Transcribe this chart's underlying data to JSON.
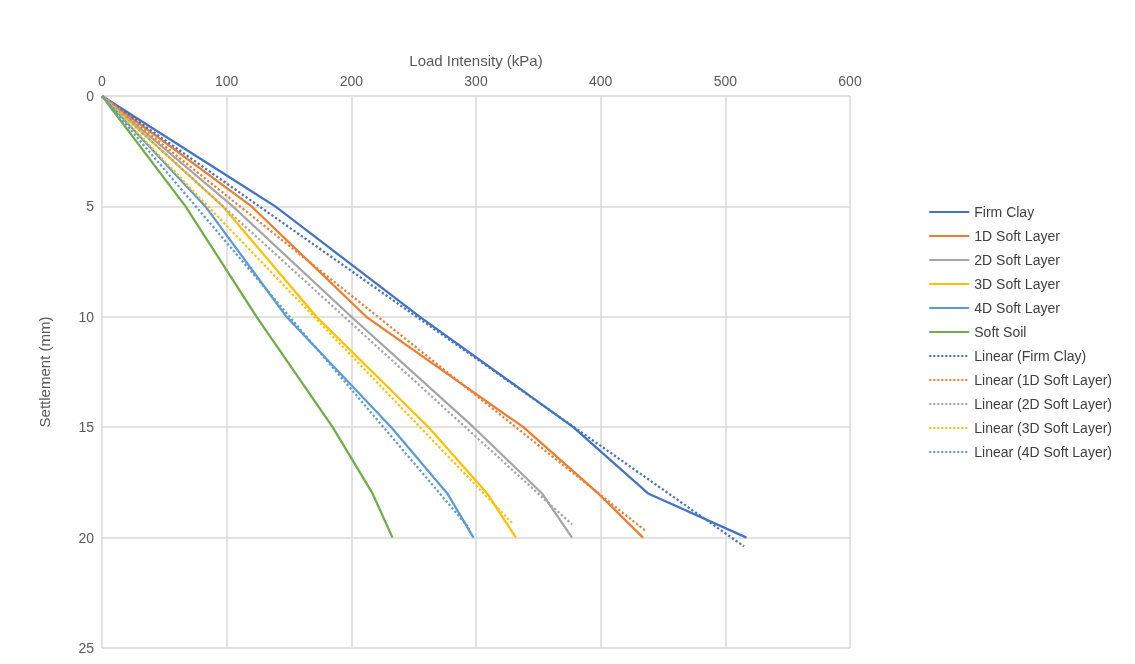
{
  "chart_data": {
    "type": "line",
    "xlabel": "Load Intensity (kPa)",
    "ylabel": "Settlement (mm)",
    "xlim": [
      0,
      600
    ],
    "xticks": [
      0,
      100,
      200,
      300,
      400,
      500,
      600
    ],
    "ylim": [
      25,
      0
    ],
    "yticks": [
      0,
      5,
      10,
      15,
      20,
      25
    ],
    "grid": true,
    "legend": "right",
    "marker": "none",
    "series": [
      {
        "name": "Firm Clay",
        "color": "#4472c4",
        "x": [
          0,
          139,
          255,
          378,
          438,
          517
        ],
        "values": [
          0,
          5,
          10,
          15,
          18,
          20
        ]
      },
      {
        "name": "1D Soft Layer",
        "color": "#ed7d31",
        "x": [
          0,
          120,
          212,
          338,
          398,
          434
        ],
        "values": [
          0,
          5,
          10,
          15,
          18,
          20
        ]
      },
      {
        "name": "2D Soft Layer",
        "color": "#a5a5a5",
        "x": [
          0,
          105,
          200,
          298,
          353,
          377
        ],
        "values": [
          0,
          5,
          10,
          15,
          18,
          20
        ]
      },
      {
        "name": "3D Soft Layer",
        "color": "#ffc000",
        "x": [
          0,
          97,
          172,
          262,
          309,
          332
        ],
        "values": [
          0,
          5,
          10,
          15,
          18,
          20
        ]
      },
      {
        "name": "4D Soft Layer",
        "color": "#5b9bd5",
        "x": [
          0,
          83,
          148,
          232,
          277,
          298
        ],
        "values": [
          0,
          5,
          10,
          15,
          18,
          20
        ]
      },
      {
        "name": "Soft Soil",
        "color": "#70ad47",
        "x": [
          0,
          67,
          124,
          185,
          217,
          233
        ],
        "values": [
          0,
          5,
          10,
          15,
          18,
          20
        ]
      },
      {
        "name": "Linear (Firm Clay)",
        "color": "#4472c4",
        "line_style": "dotted",
        "x": [
          0,
          515
        ],
        "values": [
          0,
          20.4
        ]
      },
      {
        "name": "Linear (1D Soft Layer)",
        "color": "#ed7d31",
        "line_style": "dotted",
        "x": [
          0,
          436
        ],
        "values": [
          0,
          19.7
        ]
      },
      {
        "name": "Linear (2D Soft Layer)",
        "color": "#a5a5a5",
        "line_style": "dotted",
        "x": [
          0,
          377
        ],
        "values": [
          0,
          19.4
        ]
      },
      {
        "name": "Linear (3D Soft Layer)",
        "color": "#ffc000",
        "line_style": "dotted",
        "x": [
          0,
          330
        ],
        "values": [
          0,
          19.4
        ]
      },
      {
        "name": "Linear (4D Soft Layer)",
        "color": "#5b9bd5",
        "line_style": "dotted",
        "x": [
          0,
          295
        ],
        "values": [
          0,
          19.6
        ]
      }
    ]
  }
}
